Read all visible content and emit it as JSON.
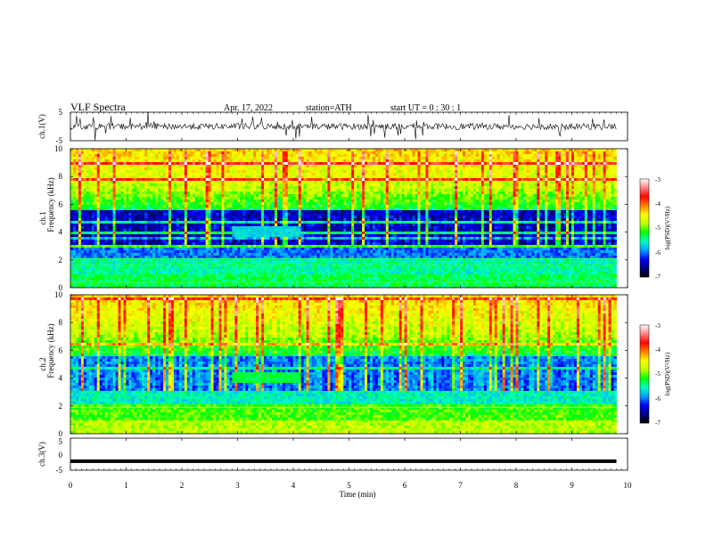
{
  "header": {
    "title": "VLF  Spectra",
    "date": "Apr. 17, 2022",
    "station": "station=ATH",
    "start": "start  UT  =    0  : 30 : 1"
  },
  "chart_data": [
    {
      "type": "line",
      "name": "ch.1 waveform",
      "ylabel": "ch.1(V)",
      "ylim": [
        -5,
        5
      ],
      "yticks": [
        "5",
        "-5"
      ],
      "xlim": [
        0,
        10
      ],
      "baseline": 0,
      "note_values": "noisy waveform centered near 0 V with spikes"
    },
    {
      "type": "heatmap",
      "name": "ch.1 spectrogram",
      "ylabel_top": "ch.1",
      "ylabel": "Frequency  (kHz)",
      "ylim": [
        0,
        10
      ],
      "yticks": [
        "0",
        "2",
        "4",
        "6",
        "8",
        "10"
      ],
      "xlim": [
        0,
        10
      ],
      "data_end_min": 9.8,
      "colorbar": {
        "label": "log(PSD)(V²/Hz)",
        "range": [
          -7,
          -3
        ],
        "ticks": [
          "-3",
          "-4",
          "-5",
          "-6",
          "-7"
        ]
      }
    },
    {
      "type": "heatmap",
      "name": "ch.2 spectrogram",
      "ylabel_top": "ch.2",
      "ylabel": "Frequency  (kHz)",
      "ylim": [
        0,
        10
      ],
      "yticks": [
        "0",
        "2",
        "4",
        "6",
        "8",
        "10"
      ],
      "xlim": [
        0,
        10
      ],
      "data_end_min": 9.8,
      "colorbar": {
        "label": "log(PSD)(V²/Hz)",
        "range": [
          -7,
          -3
        ],
        "ticks": [
          "-3",
          "-4",
          "-5",
          "-6",
          "-7"
        ]
      }
    },
    {
      "type": "line",
      "name": "ch.3 waveform",
      "ylabel": "ch.3(V)",
      "ylim": [
        -5,
        5
      ],
      "yticks": [
        "5",
        "0",
        "-5"
      ],
      "xlim": [
        0,
        10
      ],
      "constant_value": -2.2
    }
  ],
  "xaxis": {
    "label": "Time  (min)",
    "ticks": [
      "0",
      "1",
      "2",
      "3",
      "4",
      "5",
      "6",
      "7",
      "8",
      "9",
      "10"
    ]
  },
  "colors": {
    "colormap": [
      "#000000",
      "#000080",
      "#0000ff",
      "#00a0ff",
      "#00ffc0",
      "#00ff00",
      "#c0ff00",
      "#ffff00",
      "#ff8000",
      "#ff0000",
      "#ff8080",
      "#ffffff"
    ]
  }
}
